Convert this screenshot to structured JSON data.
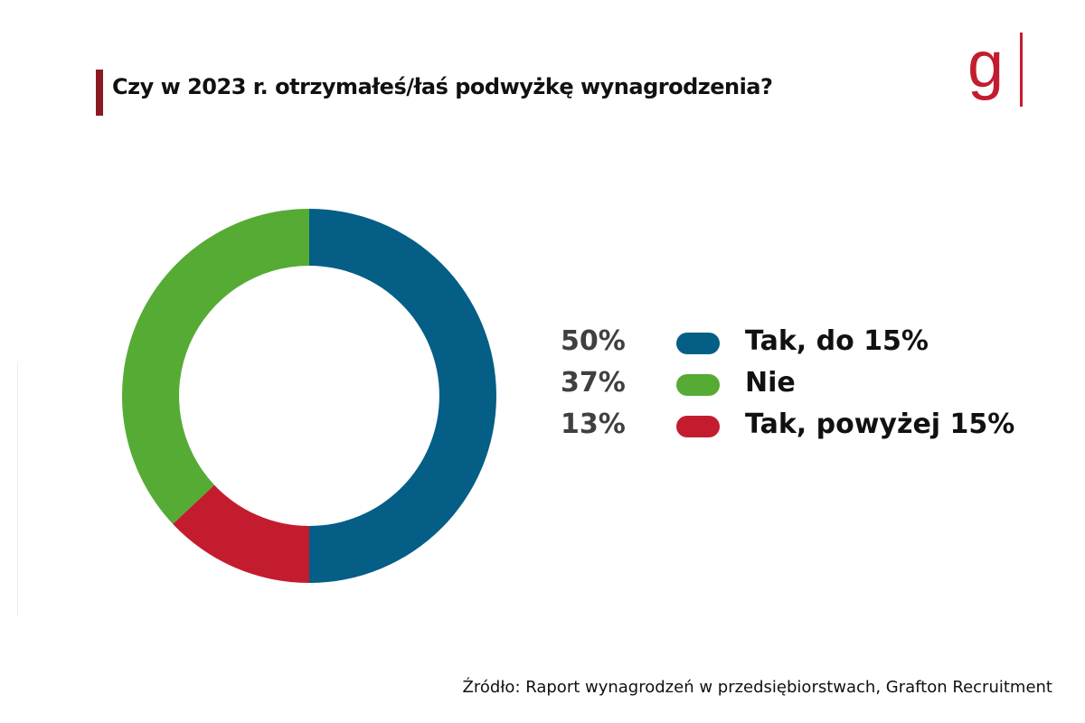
{
  "title": "Czy w 2023 r. otrzymałeś/łaś podwyżkę wynagrodzenia?",
  "logo": "g",
  "source": "Źródło: Raport wynagrodzeń w  przedsiębiorstwach, Grafton Recruitment",
  "chart_data": {
    "type": "pie",
    "donut": true,
    "title": "Czy w 2023 r. otrzymałeś/łaś podwyżkę wynagrodzenia?",
    "slice_order": [
      0,
      2,
      1
    ],
    "series": [
      {
        "name": "Tak, do 15%",
        "value": 50,
        "label": "50%",
        "color": "#045e85"
      },
      {
        "name": "Nie",
        "value": 37,
        "label": "37%",
        "color": "#56ab34"
      },
      {
        "name": "Tak, powyżej 15%",
        "value": 13,
        "label": "13%",
        "color": "#c41c2f"
      }
    ],
    "legend": "right"
  }
}
